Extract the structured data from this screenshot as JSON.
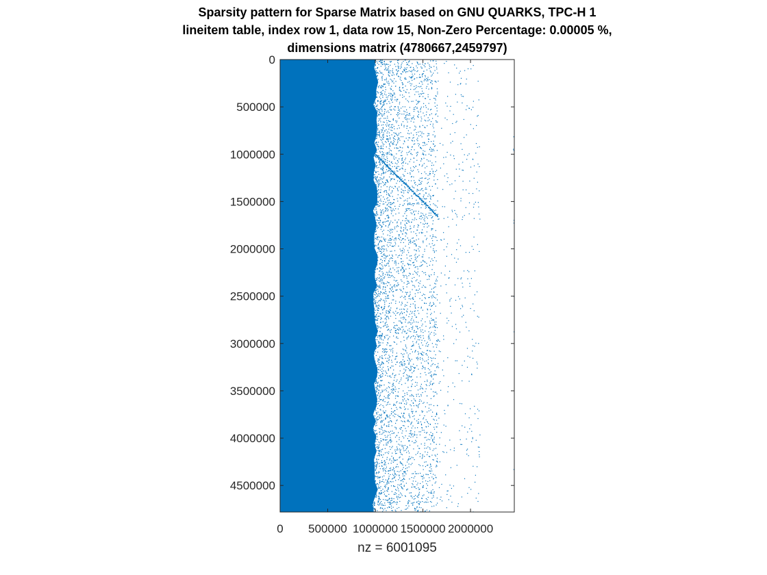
{
  "chart_data": {
    "type": "scatter",
    "subtype": "sparsity-pattern",
    "title_lines": [
      "Sparsity pattern for Sparse Matrix based on GNU QUARKS, TPC-H 1",
      "lineitem table, index row 1, data row 15, Non-Zero Percentage: 0.00005 %,",
      "dimensions matrix (4780667,2459797)"
    ],
    "xlabel": "nz = 6001095",
    "ylabel": "",
    "rows": 4780667,
    "cols": 2459797,
    "nnz": 6001095,
    "xlim": [
      0,
      2459797
    ],
    "ylim": [
      0,
      4780667
    ],
    "y_reversed": true,
    "x_ticks": [
      0,
      500000,
      1000000,
      1500000,
      2000000
    ],
    "x_tick_labels": [
      "0",
      "500000",
      "1000000",
      "1500000",
      "2000000"
    ],
    "y_ticks": [
      0,
      500000,
      1000000,
      1500000,
      2000000,
      2500000,
      3000000,
      3500000,
      4000000,
      4500000
    ],
    "y_tick_labels": [
      "0",
      "500000",
      "1000000",
      "1500000",
      "2000000",
      "2500000",
      "3000000",
      "3500000",
      "4000000",
      "4500000"
    ],
    "dense_region_right_edge_col": 1000000,
    "scatter_fade_end_col": 1650000,
    "sparse_outlier_cols_max": 2100000,
    "diagonal_feature": {
      "from": [
        1000000,
        1000000
      ],
      "to": [
        1650000,
        1650000
      ]
    },
    "grid": false,
    "legend": "none",
    "colors": {
      "marker": "#0072BD",
      "axes": "#262626",
      "background": "#ffffff"
    }
  }
}
